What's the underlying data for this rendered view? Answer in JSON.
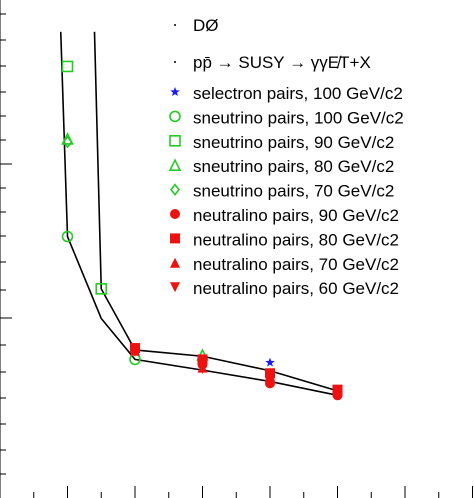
{
  "chart_data": {
    "type": "line",
    "title": "DØ",
    "subtitle": "pp̄ → SUSY → γγE̸T+X",
    "xlabel": "",
    "ylabel": "",
    "xlim": [
      0,
      7
    ],
    "ylim": [
      0,
      7.4
    ],
    "grid": false,
    "legend_position": "top-right",
    "series": [
      {
        "name": "selectron pairs, 100 GeV/c2",
        "marker": "star",
        "color": "#1a1aff",
        "x": [
          4
        ],
        "y": [
          2.15
        ]
      },
      {
        "name": "sneutrino pairs, 100 GeV/c2",
        "marker": "circle-open",
        "color": "#22cc22",
        "x": [
          1,
          2
        ],
        "y": [
          4.15,
          2.2
        ]
      },
      {
        "name": "sneutrino pairs, 90 GeV/c2",
        "marker": "square-open",
        "color": "#22cc22",
        "x": [
          1,
          1.5
        ],
        "y": [
          6.85,
          3.32
        ]
      },
      {
        "name": "sneutrino pairs, 80 GeV/c2",
        "marker": "triangle-open",
        "color": "#22cc22",
        "x": [
          1,
          3
        ],
        "y": [
          5.7,
          2.27
        ]
      },
      {
        "name": "sneutrino pairs, 70 GeV/c2",
        "marker": "diamond-open",
        "color": "#22cc22",
        "x": [
          1
        ],
        "y": [
          5.65
        ]
      },
      {
        "name": "neutralino pairs, 90 GeV/c2",
        "marker": "circle",
        "color": "#ee1111",
        "x": [
          2,
          3,
          4,
          5
        ],
        "y": [
          2.35,
          2.12,
          1.82,
          1.63
        ]
      },
      {
        "name": "neutralino pairs, 80 GeV/c2",
        "marker": "square",
        "color": "#ee1111",
        "x": [
          2,
          3,
          4,
          5
        ],
        "y": [
          2.38,
          2.2,
          1.98,
          1.72
        ]
      },
      {
        "name": "neutralino pairs, 70 GeV/c2",
        "marker": "triangle",
        "color": "#ee1111",
        "x": [
          2,
          3,
          4,
          5
        ],
        "y": [
          2.34,
          2.07,
          1.94,
          1.68
        ]
      },
      {
        "name": "neutralino pairs, 60 GeV/c2",
        "marker": "triangle-down",
        "color": "#ee1111",
        "x": [
          2,
          3,
          4,
          5
        ],
        "y": [
          2.32,
          2.05,
          1.9,
          1.66
        ]
      }
    ],
    "curves": [
      {
        "x": [
          0.9,
          1.0,
          1.5,
          2.0,
          3.0,
          4.0,
          5.0
        ],
        "y": [
          7.4,
          4.15,
          2.85,
          2.2,
          2.03,
          1.85,
          1.63
        ]
      },
      {
        "x": [
          1.4,
          1.5,
          2.0,
          3.0,
          4.0,
          5.0
        ],
        "y": [
          7.4,
          3.32,
          2.35,
          2.25,
          2.02,
          1.7
        ]
      }
    ]
  },
  "legend": {
    "title": "DØ",
    "process": "pp̄ → SUSY → γγE̸T+X",
    "entries": [
      "selectron pairs, 100 GeV/c2",
      "sneutrino pairs, 100 GeV/c2",
      "sneutrino pairs, 90 GeV/c2",
      "sneutrino pairs, 80 GeV/c2",
      "sneutrino pairs, 70 GeV/c2",
      "neutralino pairs, 90 GeV/c2",
      "neutralino pairs, 80 GeV/c2",
      "neutralino pairs, 70 GeV/c2",
      "neutralino pairs, 60 GeV/c2"
    ]
  }
}
